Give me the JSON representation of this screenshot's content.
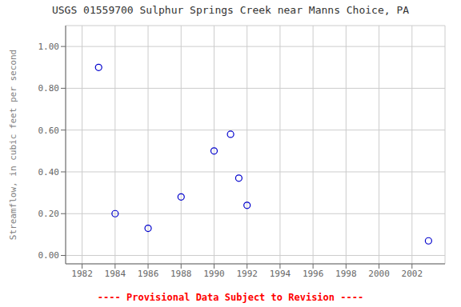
{
  "chart_data": {
    "type": "scatter",
    "title": "USGS 01559700 Sulphur Springs Creek near Manns Choice, PA",
    "ylabel": "Streamflow, in cubic feet per second",
    "x": [
      1983,
      1984,
      1986,
      1988,
      1990,
      1991,
      1991.5,
      1992,
      2003
    ],
    "values": [
      0.9,
      0.2,
      0.13,
      0.28,
      0.5,
      0.58,
      0.37,
      0.24,
      0.07
    ],
    "color": "#0000CC",
    "marker": "open circle",
    "xlim": [
      1981,
      2004
    ],
    "ylim": [
      -0.04,
      1.1
    ],
    "xticks": [
      1982,
      1984,
      1986,
      1988,
      1990,
      1992,
      1994,
      1996,
      1998,
      2000,
      2002
    ],
    "yticks": [
      {
        "value": 0,
        "label": "0.00"
      },
      {
        "value": 0.2,
        "label": "0.20"
      },
      {
        "value": 0.4,
        "label": "0.40"
      },
      {
        "value": 0.6,
        "label": "0.60"
      },
      {
        "value": 0.8,
        "label": "0.80"
      },
      {
        "value": 1,
        "label": "1.00"
      }
    ],
    "grid": true,
    "annotations": [
      {
        "text": "---- Provisional Data Subject to Revision ----",
        "color": "#ff0000"
      }
    ]
  }
}
